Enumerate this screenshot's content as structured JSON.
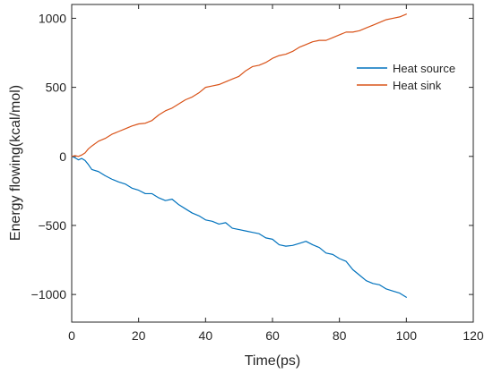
{
  "chart_data": {
    "type": "line",
    "title": "",
    "xlabel": "Time(ps)",
    "ylabel": "Energy flowing(kcal/mol)",
    "xlim": [
      0,
      120
    ],
    "ylim": [
      -1200,
      1100
    ],
    "xticks": [
      0,
      20,
      40,
      60,
      80,
      100,
      120
    ],
    "yticks": [
      -1000,
      -500,
      0,
      500,
      1000
    ],
    "ytick_labels": [
      "−1000",
      "−500",
      "0",
      "500",
      "1000"
    ],
    "grid": false,
    "legend_position": "top-right",
    "series": [
      {
        "name": "Heat source",
        "color": "#0072BD",
        "x": [
          0,
          1,
          2,
          3,
          4,
          5,
          6,
          8,
          10,
          12,
          14,
          16,
          18,
          20,
          22,
          24,
          26,
          28,
          30,
          32,
          34,
          36,
          38,
          40,
          42,
          44,
          46,
          48,
          50,
          52,
          54,
          56,
          58,
          60,
          62,
          64,
          66,
          68,
          70,
          72,
          74,
          76,
          78,
          80,
          82,
          84,
          86,
          88,
          90,
          92,
          94,
          96,
          98,
          100
        ],
        "y": [
          0,
          -10,
          -25,
          -15,
          -30,
          -60,
          -95,
          -110,
          -140,
          -165,
          -185,
          -200,
          -230,
          -245,
          -270,
          -270,
          -300,
          -320,
          -310,
          -350,
          -380,
          -410,
          -430,
          -460,
          -470,
          -490,
          -480,
          -520,
          -530,
          -540,
          -550,
          -560,
          -590,
          -600,
          -640,
          -650,
          -645,
          -630,
          -615,
          -640,
          -660,
          -700,
          -710,
          -740,
          -760,
          -820,
          -860,
          -900,
          -920,
          -930,
          -960,
          -975,
          -990,
          -1020
        ]
      },
      {
        "name": "Heat sink",
        "color": "#D95319",
        "x": [
          0,
          1,
          2,
          3,
          4,
          5,
          6,
          8,
          10,
          12,
          14,
          16,
          18,
          20,
          22,
          24,
          26,
          28,
          30,
          32,
          34,
          36,
          38,
          40,
          42,
          44,
          46,
          48,
          50,
          52,
          54,
          56,
          58,
          60,
          62,
          64,
          66,
          68,
          70,
          72,
          74,
          76,
          78,
          80,
          82,
          84,
          86,
          88,
          90,
          92,
          94,
          96,
          98,
          100
        ],
        "y": [
          0,
          5,
          0,
          10,
          25,
          55,
          75,
          110,
          130,
          160,
          180,
          200,
          220,
          235,
          240,
          260,
          300,
          330,
          350,
          380,
          410,
          430,
          460,
          500,
          510,
          520,
          540,
          560,
          580,
          620,
          650,
          660,
          680,
          710,
          730,
          740,
          760,
          790,
          810,
          830,
          840,
          840,
          860,
          880,
          900,
          900,
          910,
          930,
          950,
          970,
          990,
          1000,
          1010,
          1030
        ]
      }
    ]
  }
}
